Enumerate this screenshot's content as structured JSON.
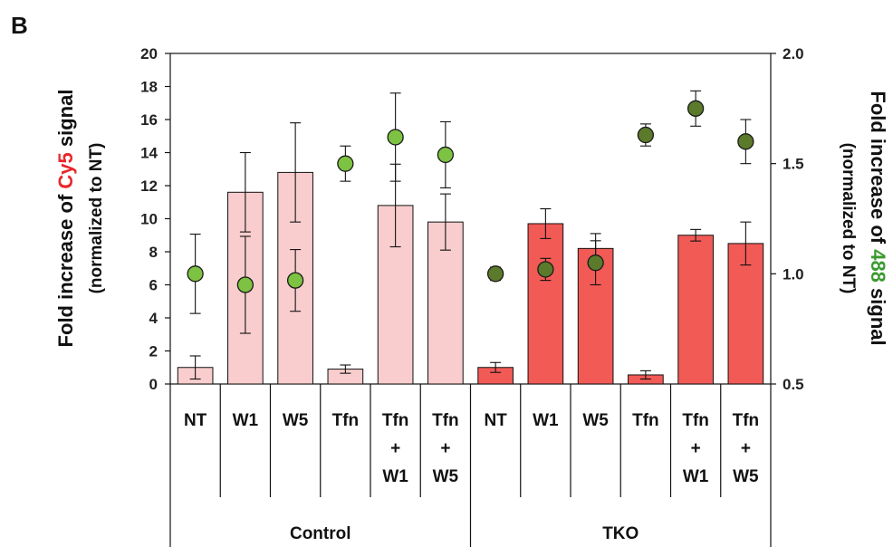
{
  "panel_label": "B",
  "chart_data": {
    "type": "bar",
    "categories": [
      {
        "lines": [
          "NT"
        ],
        "group": "Control"
      },
      {
        "lines": [
          "W1"
        ],
        "group": "Control"
      },
      {
        "lines": [
          "W5"
        ],
        "group": "Control"
      },
      {
        "lines": [
          "Tfn"
        ],
        "group": "Control"
      },
      {
        "lines": [
          "Tfn",
          "+",
          "W1"
        ],
        "group": "Control"
      },
      {
        "lines": [
          "Tfn",
          "+",
          "W5"
        ],
        "group": "Control"
      },
      {
        "lines": [
          "NT"
        ],
        "group": "TKO"
      },
      {
        "lines": [
          "W1"
        ],
        "group": "TKO"
      },
      {
        "lines": [
          "W5"
        ],
        "group": "TKO"
      },
      {
        "lines": [
          "Tfn"
        ],
        "group": "TKO"
      },
      {
        "lines": [
          "Tfn",
          "+",
          "W1"
        ],
        "group": "TKO"
      },
      {
        "lines": [
          "Tfn",
          "+",
          "W5"
        ],
        "group": "TKO"
      }
    ],
    "groups": [
      "Control",
      "TKO"
    ],
    "y_left": {
      "title_parts": [
        {
          "text": "Fold increase of ",
          "color": "#111111"
        },
        {
          "text": "Cy5",
          "color": "#e8262a"
        },
        {
          "text": " signal",
          "color": "#111111"
        }
      ],
      "subtitle": "(normalized to NT)",
      "lim": [
        0,
        20
      ],
      "ticks": [
        0,
        2,
        4,
        6,
        8,
        10,
        12,
        14,
        16,
        18,
        20
      ]
    },
    "y_right": {
      "title_parts": [
        {
          "text": "Fold increase of ",
          "color": "#111111"
        },
        {
          "text": "488",
          "color": "#3a9a2e"
        },
        {
          "text": " signal",
          "color": "#111111"
        }
      ],
      "subtitle": "(normalized to NT)",
      "lim": [
        0.5,
        2.0
      ],
      "ticks": [
        "0.5",
        "1.0",
        "1.5",
        "2.0"
      ]
    },
    "bars": {
      "axis": "left",
      "values": [
        1.0,
        11.6,
        12.8,
        0.9,
        10.8,
        9.8,
        1.0,
        9.7,
        8.2,
        0.55,
        9.0,
        8.5
      ],
      "errors": [
        0.7,
        2.4,
        3.0,
        0.25,
        2.5,
        1.7,
        0.3,
        0.9,
        0.9,
        0.25,
        0.35,
        1.3
      ],
      "colors": [
        "#f9cdcd",
        "#f9cdcd",
        "#f9cdcd",
        "#f9cdcd",
        "#f9cdcd",
        "#f9cdcd",
        "#f25a56",
        "#f25a56",
        "#f25a56",
        "#f25a56",
        "#f25a56",
        "#f25a56"
      ]
    },
    "points": {
      "axis": "right",
      "values": [
        1.0,
        0.95,
        0.97,
        1.5,
        1.62,
        1.54,
        1.0,
        1.02,
        1.05,
        1.63,
        1.75,
        1.6
      ],
      "errors": [
        0.18,
        0.22,
        0.14,
        0.08,
        0.2,
        0.15,
        0.03,
        0.05,
        0.1,
        0.05,
        0.08,
        0.1
      ],
      "colors": [
        "#7dc242",
        "#7dc242",
        "#7dc242",
        "#7dc242",
        "#7dc242",
        "#7dc242",
        "#5b7a2b",
        "#5b7a2b",
        "#5b7a2b",
        "#5b7a2b",
        "#5b7a2b",
        "#5b7a2b"
      ]
    },
    "grid": false
  }
}
